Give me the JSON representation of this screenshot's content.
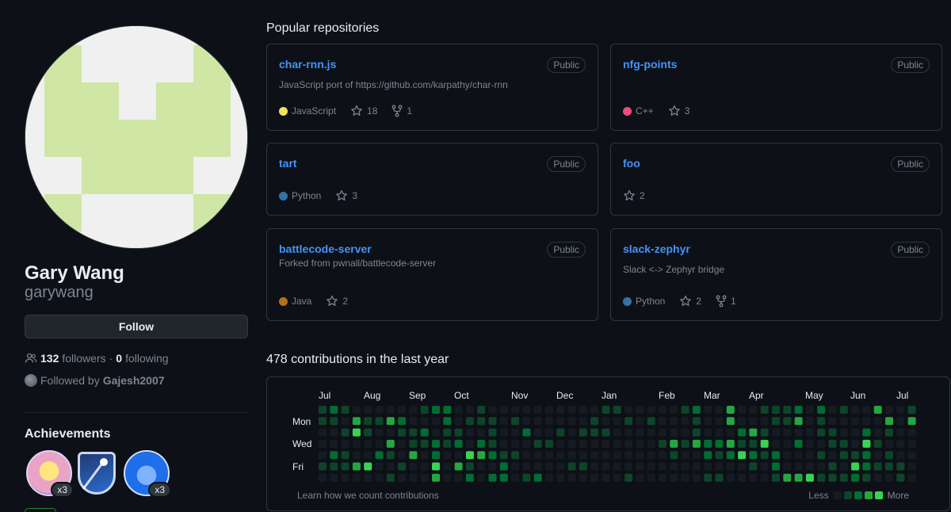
{
  "profile": {
    "name": "Gary Wang",
    "login": "garywang",
    "follow_label": "Follow",
    "followers_count": "132",
    "followers_label": "followers",
    "separator": "·",
    "following_count": "0",
    "following_label": "following",
    "followed_by_prefix": "Followed by",
    "followed_by_user": "Gajesh2007"
  },
  "achievements": {
    "title": "Achievements",
    "badges": [
      {
        "name": "starstruck",
        "count": "x3"
      },
      {
        "name": "arctic-code-vault",
        "count": ""
      },
      {
        "name": "pull-shark",
        "count": "x3"
      }
    ]
  },
  "popular": {
    "title": "Popular repositories",
    "repos": [
      {
        "name": "char-rnn.js",
        "visibility": "Public",
        "description": "JavaScript port of https://github.com/karpathy/char-rnn",
        "language": "JavaScript",
        "lang_color": "#f1e05a",
        "stars": "18",
        "forks": "1"
      },
      {
        "name": "nfg-points",
        "visibility": "Public",
        "description": "",
        "language": "C++",
        "lang_color": "#f34b7d",
        "stars": "3",
        "forks": ""
      },
      {
        "name": "tart",
        "visibility": "Public",
        "description": "",
        "language": "Python",
        "lang_color": "#3572A5",
        "stars": "3",
        "forks": ""
      },
      {
        "name": "foo",
        "visibility": "Public",
        "description": "",
        "language": "",
        "lang_color": "",
        "stars": "2",
        "forks": ""
      },
      {
        "name": "battlecode-server",
        "visibility": "Public",
        "description": "Forked from pwnall/battlecode-server",
        "language": "Java",
        "lang_color": "#b07219",
        "stars": "2",
        "forks": ""
      },
      {
        "name": "slack-zephyr",
        "visibility": "Public",
        "description": "Slack <-> Zephyr bridge",
        "language": "Python",
        "lang_color": "#3572A5",
        "stars": "2",
        "forks": "1"
      }
    ]
  },
  "contributions": {
    "title": "478 contributions in the last year",
    "months": [
      "Jul",
      "Aug",
      "Sep",
      "Oct",
      "Nov",
      "Dec",
      "Jan",
      "Feb",
      "Mar",
      "Apr",
      "May",
      "Jun",
      "Jul"
    ],
    "days": [
      "Mon",
      "Wed",
      "Fri"
    ],
    "learn_label": "Learn how we count contributions",
    "legend_less": "Less",
    "legend_more": "More",
    "level_colors": [
      "#161b22",
      "#0e4429",
      "#006d32",
      "#26a641",
      "#39d353"
    ]
  }
}
